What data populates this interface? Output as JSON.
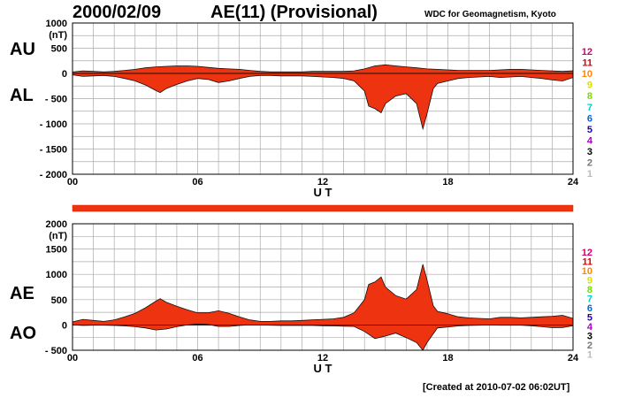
{
  "header": {
    "date": "2000/02/09",
    "title": "AE(11) (Provisional)",
    "source": "WDC for Geomagnetism, Kyoto",
    "created": "[Created at 2010-07-02 06:02UT]"
  },
  "colors": {
    "fill": "#ee3311",
    "line": "#111111",
    "grid": "#aaaaaa",
    "bar": "#ee3311"
  },
  "station_legend": [
    {
      "label": "12",
      "color": "#cc0077"
    },
    {
      "label": "11",
      "color": "#dd0000"
    },
    {
      "label": "10",
      "color": "#ff8800"
    },
    {
      "label": "9",
      "color": "#dddd00"
    },
    {
      "label": "8",
      "color": "#77dd00"
    },
    {
      "label": "7",
      "color": "#00cccc"
    },
    {
      "label": "6",
      "color": "#0066dd"
    },
    {
      "label": "5",
      "color": "#2200aa"
    },
    {
      "label": "4",
      "color": "#aa00cc"
    },
    {
      "label": "3",
      "color": "#000000"
    },
    {
      "label": "2",
      "color": "#777777"
    },
    {
      "label": "1",
      "color": "#bbbbbb"
    }
  ],
  "chart_data": [
    {
      "type": "area",
      "xlabel": "U T",
      "unit": "(nT)",
      "ylim": [
        -2000,
        1000
      ],
      "xlim": [
        0,
        24
      ],
      "yticks": [
        1000,
        500,
        0,
        -500,
        -1000,
        -1500,
        -2000
      ],
      "ytick_labels": [
        "1000",
        "500",
        "0",
        "- 500",
        "- 1000",
        "- 1500",
        "- 2000"
      ],
      "xticks": [
        0,
        6,
        12,
        18,
        24
      ],
      "xtick_labels": [
        "00",
        "06",
        "12",
        "18",
        "24"
      ],
      "grid": true,
      "series": [
        {
          "name": "AU",
          "x": [
            0,
            0.5,
            1,
            1.5,
            2,
            2.5,
            3,
            3.5,
            4,
            4.5,
            5,
            5.5,
            6,
            6.5,
            7,
            7.5,
            8,
            8.5,
            9,
            9.5,
            10,
            10.5,
            11,
            11.5,
            12,
            12.5,
            13,
            13.5,
            14,
            14.5,
            15,
            15.5,
            16,
            16.5,
            17,
            17.5,
            18,
            18.5,
            19,
            19.5,
            20,
            20.5,
            21,
            21.5,
            22,
            22.5,
            23,
            23.5,
            24
          ],
          "values": [
            30,
            50,
            40,
            30,
            40,
            60,
            80,
            110,
            130,
            140,
            150,
            150,
            140,
            120,
            100,
            90,
            80,
            60,
            40,
            30,
            30,
            30,
            30,
            40,
            40,
            40,
            40,
            50,
            90,
            150,
            170,
            150,
            130,
            110,
            90,
            80,
            70,
            60,
            60,
            60,
            60,
            70,
            80,
            80,
            70,
            60,
            50,
            40,
            50
          ]
        },
        {
          "name": "AL",
          "x": [
            0,
            0.5,
            1,
            1.5,
            2,
            2.5,
            3,
            3.5,
            4,
            4.2,
            4.5,
            5,
            5.5,
            6,
            6.5,
            7,
            7.5,
            8,
            8.5,
            9,
            9.5,
            10,
            10.5,
            11,
            11.5,
            12,
            12.5,
            13,
            13.5,
            14,
            14.2,
            14.5,
            14.8,
            15,
            15.5,
            16,
            16.5,
            16.8,
            17,
            17.3,
            17.5,
            18,
            18.5,
            19,
            19.5,
            20,
            20.5,
            21,
            21.5,
            22,
            22.5,
            23,
            23.5,
            24
          ],
          "values": [
            -30,
            -60,
            -50,
            -40,
            -60,
            -100,
            -150,
            -230,
            -340,
            -380,
            -300,
            -220,
            -150,
            -100,
            -120,
            -180,
            -150,
            -100,
            -60,
            -40,
            -40,
            -50,
            -50,
            -50,
            -60,
            -70,
            -80,
            -100,
            -150,
            -350,
            -650,
            -700,
            -780,
            -600,
            -450,
            -400,
            -600,
            -1100,
            -800,
            -300,
            -200,
            -150,
            -100,
            -80,
            -70,
            -60,
            -80,
            -70,
            -60,
            -80,
            -100,
            -130,
            -150,
            -80
          ]
        }
      ],
      "side_labels": [
        "AU",
        "AL"
      ]
    },
    {
      "type": "area",
      "xlabel": "U T",
      "unit": "(nT)",
      "ylim": [
        -500,
        2000
      ],
      "xlim": [
        0,
        24
      ],
      "yticks": [
        2000,
        1500,
        1000,
        500,
        0,
        -500
      ],
      "ytick_labels": [
        "2000",
        "1500",
        "1000",
        "500",
        "0",
        "- 500"
      ],
      "xticks": [
        0,
        6,
        12,
        18,
        24
      ],
      "xtick_labels": [
        "00",
        "06",
        "12",
        "18",
        "24"
      ],
      "grid": true,
      "series": [
        {
          "name": "AE",
          "x": [
            0,
            0.5,
            1,
            1.5,
            2,
            2.5,
            3,
            3.5,
            4,
            4.2,
            4.5,
            5,
            5.5,
            6,
            6.5,
            7,
            7.5,
            8,
            8.5,
            9,
            9.5,
            10,
            10.5,
            11,
            11.5,
            12,
            12.5,
            13,
            13.5,
            14,
            14.2,
            14.5,
            14.8,
            15,
            15.5,
            16,
            16.5,
            16.8,
            17,
            17.3,
            17.5,
            18,
            18.5,
            19,
            19.5,
            20,
            20.5,
            21,
            21.5,
            22,
            22.5,
            23,
            23.5,
            24
          ],
          "values": [
            60,
            110,
            90,
            70,
            100,
            160,
            230,
            340,
            470,
            520,
            450,
            370,
            300,
            240,
            240,
            280,
            230,
            160,
            100,
            70,
            70,
            80,
            80,
            90,
            100,
            110,
            120,
            150,
            240,
            500,
            800,
            850,
            950,
            750,
            580,
            510,
            700,
            1200,
            890,
            380,
            270,
            220,
            160,
            140,
            130,
            120,
            150,
            150,
            140,
            150,
            160,
            170,
            190,
            130
          ]
        },
        {
          "name": "AO",
          "x": [
            0,
            0.5,
            1,
            1.5,
            2,
            2.5,
            3,
            3.5,
            4,
            4.5,
            5,
            5.5,
            6,
            6.5,
            7,
            7.5,
            8,
            8.5,
            9,
            9.5,
            10,
            10.5,
            11,
            11.5,
            12,
            12.5,
            13,
            13.5,
            14,
            14.5,
            15,
            15.5,
            16,
            16.5,
            16.8,
            17,
            17.5,
            18,
            18.5,
            19,
            19.5,
            20,
            20.5,
            21,
            21.5,
            22,
            22.5,
            23,
            23.5,
            24
          ],
          "values": [
            0,
            -10,
            -5,
            -5,
            -10,
            -20,
            -35,
            -60,
            -100,
            -80,
            -35,
            0,
            20,
            10,
            -30,
            -30,
            -10,
            0,
            0,
            -5,
            -10,
            -10,
            -10,
            -10,
            -15,
            -20,
            -25,
            -30,
            -130,
            -270,
            -220,
            -160,
            -250,
            -350,
            -500,
            -350,
            -60,
            -40,
            -20,
            -10,
            -5,
            0,
            -5,
            -5,
            -5,
            -15,
            -35,
            -55,
            -50,
            -15
          ]
        }
      ],
      "side_labels": [
        "AE",
        "AO"
      ]
    }
  ]
}
